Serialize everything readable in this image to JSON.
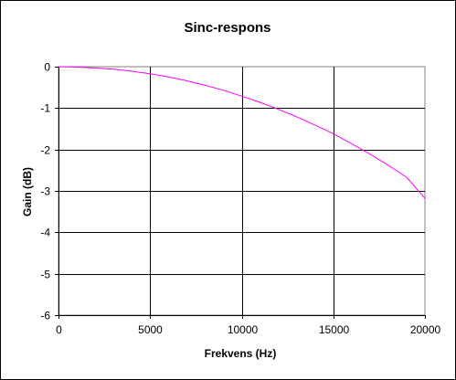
{
  "chart_data": {
    "type": "line",
    "title": "Sinc-respons",
    "xlabel": "Frekvens (Hz)",
    "ylabel": "Gain (dB)",
    "xlim": [
      0,
      20000
    ],
    "ylim": [
      -6,
      0
    ],
    "xticks": [
      0,
      5000,
      10000,
      15000,
      20000
    ],
    "xtick_labels": [
      "0",
      "5000",
      "10000",
      "15000",
      "20000"
    ],
    "yticks": [
      0,
      -1,
      -2,
      -3,
      -4,
      -5,
      -6
    ],
    "ytick_labels": [
      "0",
      "-1",
      "-2",
      "-3",
      "-4",
      "-5",
      "-6"
    ],
    "grid": true,
    "legend": "none",
    "series": [
      {
        "color": "#ff00ff",
        "x": [
          0,
          1000,
          2000,
          3000,
          4000,
          5000,
          6000,
          7000,
          8000,
          9000,
          10000,
          11000,
          12000,
          13000,
          14000,
          15000,
          16000,
          17000,
          18000,
          19000,
          20000
        ],
        "y": [
          0,
          -0.01,
          -0.03,
          -0.06,
          -0.11,
          -0.17,
          -0.25,
          -0.34,
          -0.45,
          -0.57,
          -0.71,
          -0.86,
          -1.03,
          -1.21,
          -1.41,
          -1.62,
          -1.86,
          -2.11,
          -2.38,
          -2.67,
          -3.18
        ]
      }
    ]
  },
  "colors": {
    "line": "#ff00ff",
    "grid": "#000000",
    "plot_border": "#808080",
    "background": "#ffffff"
  }
}
